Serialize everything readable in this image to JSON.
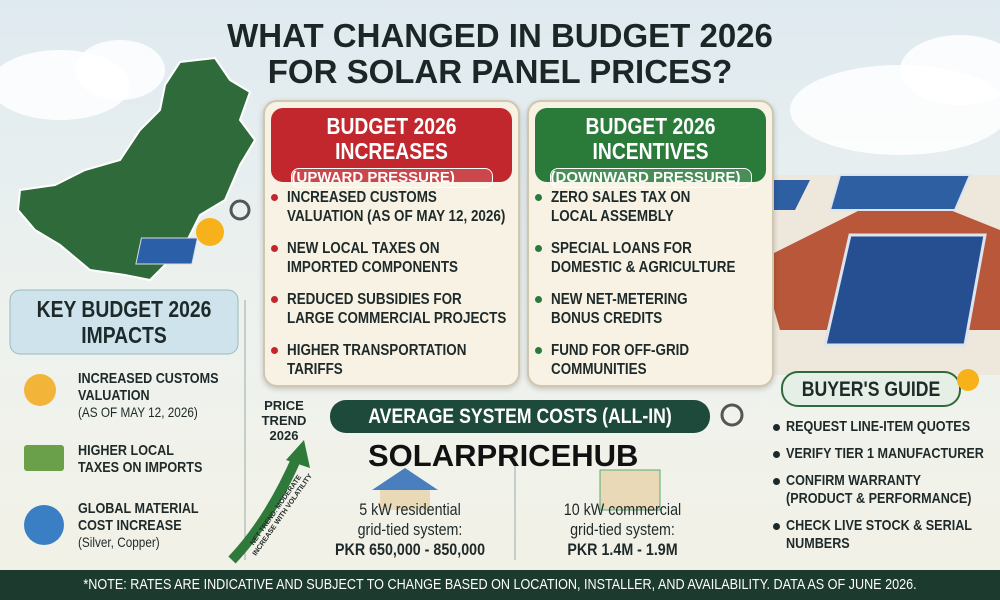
{
  "header": {
    "title_lines": [
      "WHAT CHANGED IN BUDGET 2026",
      "FOR SOLAR PANEL PRICES?"
    ]
  },
  "increases": {
    "title_lines": [
      "BUDGET 2026",
      "INCREASES"
    ],
    "subtitle": "(UPWARD PRESSURE)",
    "items": [
      [
        "INCREASED CUSTOMS",
        "VALUATION (AS OF MAY 12, 2026)"
      ],
      [
        "NEW LOCAL TAXES ON",
        "IMPORTED COMPONENTS"
      ],
      [
        "REDUCED SUBSIDIES FOR",
        "LARGE COMMERCIAL PROJECTS"
      ],
      [
        "HIGHER TRANSPORTATION",
        "TARIFFS"
      ]
    ]
  },
  "incentives": {
    "title_lines": [
      "BUDGET 2026",
      "INCENTIVES"
    ],
    "subtitle": "(DOWNWARD PRESSURE)",
    "items": [
      [
        "ZERO SALES TAX ON",
        "LOCAL ASSEMBLY"
      ],
      [
        "SPECIAL LOANS FOR",
        "DOMESTIC & AGRICULTURE"
      ],
      [
        "NEW NET-METERING",
        "BONUS CREDITS"
      ],
      [
        "FUND FOR OFF-GRID",
        "COMMUNITIES"
      ]
    ]
  },
  "key_impacts": {
    "title_lines": [
      "KEY BUDGET 2026",
      "IMPACTS"
    ],
    "items": [
      [
        "INCREASED CUSTOMS",
        "VALUATION",
        "(AS OF MAY 12, 2026)"
      ],
      [
        "HIGHER LOCAL",
        "TAXES ON IMPORTS"
      ],
      [
        "GLOBAL MATERIAL",
        "COST INCREASE",
        "(Silver, Copper)"
      ]
    ]
  },
  "price_trend": {
    "label_lines": [
      "PRICE",
      "TREND",
      "2026"
    ],
    "arrow_text_lines": [
      "NET TREND: MODERATE",
      "INCREASE WITH VOLATILITY"
    ]
  },
  "system_costs": {
    "title": "AVERAGE SYSTEM COSTS (ALL-IN)",
    "systems": [
      {
        "description_lines": [
          "5 kW residential",
          "grid-tied system:"
        ],
        "price": "PKR 650,000 - 850,000"
      },
      {
        "description_lines": [
          "10 kW commercial",
          "grid-tied system:"
        ],
        "price": "PKR 1.4M - 1.9M"
      }
    ]
  },
  "watermark": "SOLARPRICEHUB",
  "buyers_guide": {
    "title": "BUYER'S GUIDE",
    "items": [
      [
        "REQUEST LINE-ITEM QUOTES"
      ],
      [
        "VERIFY TIER 1 MANUFACTURER"
      ],
      [
        "CONFIRM WARRANTY",
        "(PRODUCT & PERFORMANCE)"
      ],
      [
        "CHECK LIVE STOCK & SERIAL",
        "NUMBERS"
      ]
    ]
  },
  "footer": {
    "note": "*NOTE: RATES ARE INDICATIVE AND SUBJECT TO CHANGE BASED ON LOCATION, INSTALLER, AND AVAILABILITY. DATA AS OF JUNE 2026."
  }
}
